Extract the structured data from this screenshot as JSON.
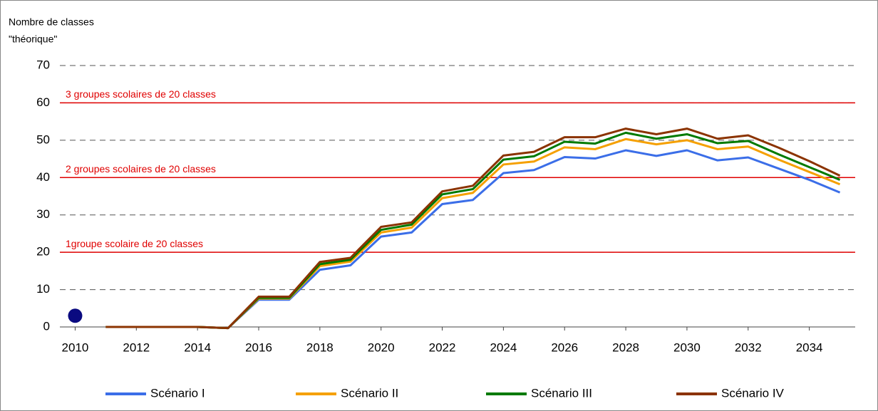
{
  "chart_data": {
    "type": "line",
    "ylabel": [
      "Nombre de classes",
      "\"théorique\""
    ],
    "x": [
      2010,
      2011,
      2012,
      2013,
      2014,
      2015,
      2016,
      2017,
      2018,
      2019,
      2020,
      2021,
      2022,
      2023,
      2024,
      2025,
      2026,
      2027,
      2028,
      2029,
      2030,
      2031,
      2032,
      2033,
      2034,
      2035
    ],
    "series": [
      {
        "name": "Scénario I",
        "color": "#3b6ee8",
        "values": [
          null,
          0,
          0,
          0,
          0,
          -0.3,
          7.3,
          7.3,
          15.3,
          16.5,
          24.2,
          25.3,
          32.9,
          34.0,
          41.2,
          42.0,
          45.5,
          45.1,
          47.3,
          45.8,
          47.3,
          44.6,
          45.4,
          42.4,
          39.4,
          36.0
        ]
      },
      {
        "name": "Scénario II",
        "color": "#f5a000",
        "values": [
          null,
          0,
          0,
          0,
          0,
          -0.3,
          7.6,
          7.6,
          16.3,
          17.5,
          25.3,
          26.6,
          34.5,
          35.9,
          43.5,
          44.3,
          48.1,
          47.6,
          50.3,
          48.9,
          50.0,
          47.6,
          48.3,
          44.8,
          41.5,
          38.2
        ]
      },
      {
        "name": "Scénario III",
        "color": "#007a00",
        "values": [
          null,
          0,
          0,
          0,
          0,
          -0.3,
          7.8,
          7.8,
          16.8,
          18.0,
          26.0,
          27.4,
          35.5,
          36.9,
          44.8,
          45.7,
          49.6,
          49.1,
          52.0,
          50.4,
          51.6,
          49.2,
          49.8,
          46.2,
          42.8,
          39.4
        ]
      },
      {
        "name": "Scénario IV",
        "color": "#8b3300",
        "values": [
          null,
          0,
          0,
          0,
          0,
          -0.3,
          8.1,
          8.1,
          17.4,
          18.5,
          26.8,
          28.0,
          36.3,
          37.8,
          45.9,
          46.9,
          50.8,
          50.8,
          53.1,
          51.6,
          53.1,
          50.4,
          51.3,
          48.0,
          44.4,
          40.5
        ]
      }
    ],
    "marker": {
      "x": 2010,
      "value": 3,
      "color": "#0a0a80"
    },
    "reference_lines": [
      {
        "value": 20,
        "label": "1groupe scolaire de 20 classes"
      },
      {
        "value": 40,
        "label": "2 groupes scolaires de 20 classes"
      },
      {
        "value": 60,
        "label": "3 groupes scolaires de 20 classes"
      }
    ],
    "reference_color": "#e00000",
    "xlim": [
      2009.5,
      2035.5
    ],
    "xticks": [
      2010,
      2012,
      2014,
      2016,
      2018,
      2020,
      2022,
      2024,
      2026,
      2028,
      2030,
      2032,
      2034
    ],
    "ylim": [
      0,
      70
    ],
    "yticks": [
      0,
      10,
      20,
      30,
      40,
      50,
      60,
      70
    ],
    "grid": true,
    "legend": "bottom"
  }
}
